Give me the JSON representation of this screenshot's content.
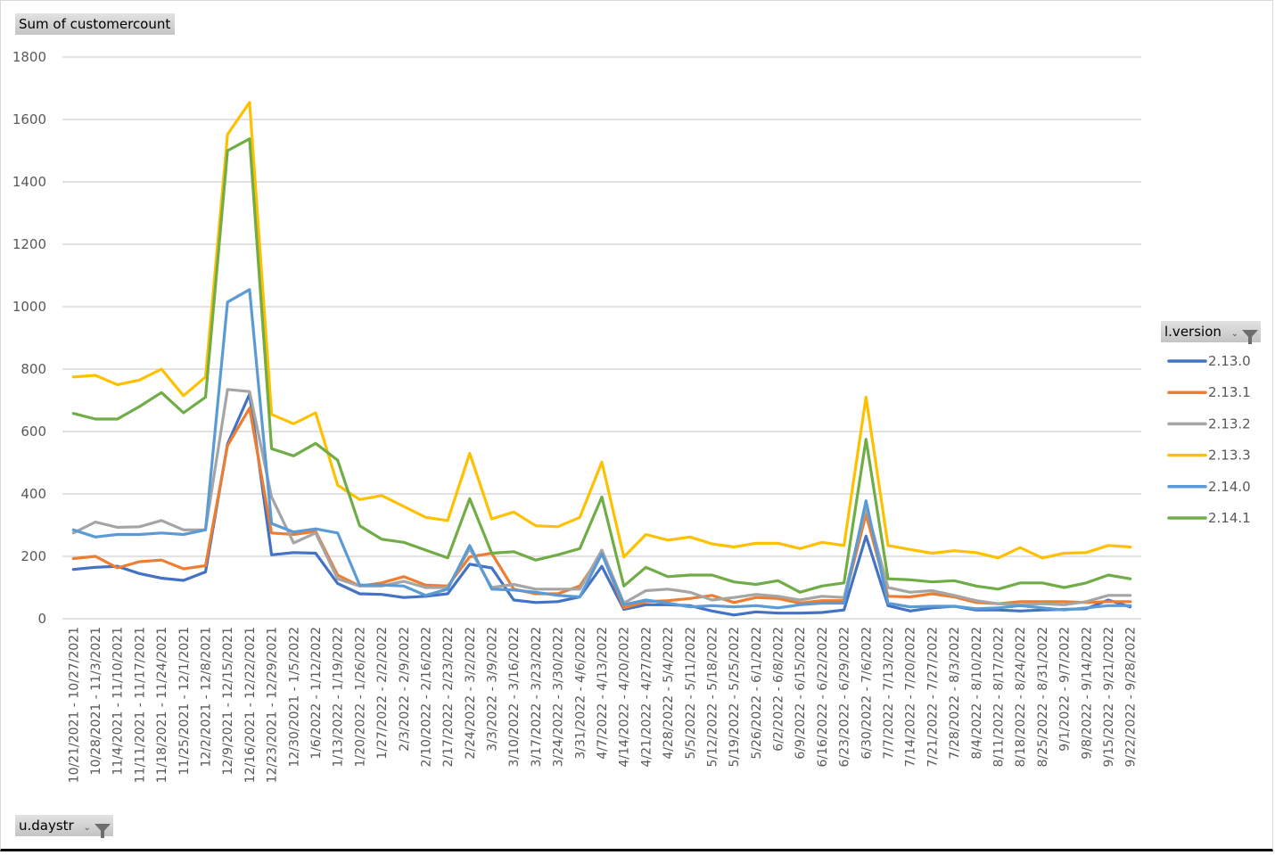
{
  "chart_data": {
    "type": "line",
    "title": "",
    "ylabel": "Sum of customercount",
    "xlabel": "u.daystr",
    "ylim": [
      0,
      1800
    ],
    "yticks": [
      0,
      200,
      400,
      600,
      800,
      1000,
      1200,
      1400,
      1600,
      1800
    ],
    "grid": true,
    "legend_position": "right",
    "legend_title": "l.version",
    "categories": [
      "10/21/2021 - 10/27/2021",
      "10/28/2021 - 11/3/2021",
      "11/4/2021 - 11/10/2021",
      "11/11/2021 - 11/17/2021",
      "11/18/2021 - 11/24/2021",
      "11/25/2021 - 12/1/2021",
      "12/2/2021 - 12/8/2021",
      "12/9/2021 - 12/15/2021",
      "12/16/2021 - 12/22/2021",
      "12/23/2021 - 12/29/2021",
      "12/30/2021 - 1/5/2022",
      "1/6/2022 - 1/12/2022",
      "1/13/2022 - 1/19/2022",
      "1/20/2022 - 1/26/2022",
      "1/27/2022 - 2/2/2022",
      "2/3/2022 - 2/9/2022",
      "2/10/2022 - 2/16/2022",
      "2/17/2022 - 2/23/2022",
      "2/24/2022 - 3/2/2022",
      "3/3/2022 - 3/9/2022",
      "3/10/2022 - 3/16/2022",
      "3/17/2022 - 3/23/2022",
      "3/24/2022 - 3/30/2022",
      "3/31/2022 - 4/6/2022",
      "4/7/2022 - 4/13/2022",
      "4/14/2022 - 4/20/2022",
      "4/21/2022 - 4/27/2022",
      "4/28/2022 - 5/4/2022",
      "5/5/2022 - 5/11/2022",
      "5/12/2022 - 5/18/2022",
      "5/19/2022 - 5/25/2022",
      "5/26/2022 - 6/1/2022",
      "6/2/2022 - 6/8/2022",
      "6/9/2022 - 6/15/2022",
      "6/16/2022 - 6/22/2022",
      "6/23/2022 - 6/29/2022",
      "6/30/2022 - 7/6/2022",
      "7/7/2022 - 7/13/2022",
      "7/14/2022 - 7/20/2022",
      "7/21/2022 - 7/27/2022",
      "7/28/2022 - 8/3/2022",
      "8/4/2022 - 8/10/2022",
      "8/11/2022 - 8/17/2022",
      "8/18/2022 - 8/24/2022",
      "8/25/2022 - 8/31/2022",
      "9/1/2022 - 9/7/2022",
      "9/8/2022 - 9/14/2022",
      "9/15/2022 - 9/21/2022",
      "9/22/2022 - 9/28/2022"
    ],
    "series": [
      {
        "name": "2.13.0",
        "color": "#4472c4",
        "values": [
          158,
          165,
          168,
          145,
          130,
          123,
          150,
          560,
          720,
          205,
          212,
          210,
          113,
          80,
          78,
          68,
          72,
          80,
          175,
          163,
          60,
          52,
          55,
          70,
          168,
          30,
          45,
          45,
          42,
          25,
          12,
          22,
          18,
          18,
          20,
          28,
          265,
          42,
          25,
          35,
          40,
          28,
          28,
          25,
          28,
          30,
          32,
          60,
          38
        ]
      },
      {
        "name": "2.13.1",
        "color": "#ed7d31",
        "values": [
          193,
          200,
          163,
          183,
          188,
          160,
          170,
          555,
          675,
          275,
          270,
          280,
          140,
          105,
          115,
          135,
          108,
          105,
          198,
          210,
          95,
          80,
          80,
          105,
          210,
          35,
          55,
          58,
          65,
          75,
          52,
          68,
          65,
          50,
          58,
          58,
          335,
          72,
          70,
          80,
          70,
          52,
          48,
          55,
          55,
          55,
          52,
          55,
          55
        ]
      },
      {
        "name": "2.13.2",
        "color": "#a5a5a5",
        "values": [
          275,
          310,
          293,
          295,
          315,
          285,
          285,
          735,
          728,
          390,
          243,
          275,
          128,
          105,
          105,
          120,
          100,
          100,
          225,
          100,
          110,
          95,
          95,
          95,
          220,
          50,
          90,
          95,
          85,
          60,
          68,
          78,
          72,
          60,
          72,
          68,
          360,
          100,
          85,
          90,
          75,
          58,
          48,
          45,
          48,
          45,
          55,
          75,
          75
        ]
      },
      {
        "name": "2.13.3",
        "color": "#ffc000",
        "values": [
          775,
          780,
          750,
          765,
          800,
          715,
          775,
          1552,
          1655,
          655,
          625,
          660,
          428,
          382,
          395,
          360,
          325,
          315,
          530,
          320,
          342,
          298,
          295,
          325,
          502,
          198,
          270,
          252,
          262,
          240,
          230,
          242,
          242,
          225,
          245,
          235,
          710,
          235,
          222,
          210,
          218,
          212,
          195,
          228,
          195,
          210,
          212,
          235,
          230
        ]
      },
      {
        "name": "2.14.0",
        "color": "#5b9bd5",
        "values": [
          285,
          262,
          270,
          270,
          275,
          270,
          285,
          1015,
          1055,
          305,
          278,
          288,
          275,
          108,
          108,
          105,
          75,
          95,
          235,
          95,
          92,
          85,
          75,
          70,
          208,
          45,
          60,
          50,
          38,
          42,
          38,
          42,
          35,
          45,
          50,
          50,
          378,
          50,
          38,
          40,
          40,
          32,
          35,
          42,
          35,
          28,
          35,
          42,
          42
        ]
      },
      {
        "name": "2.14.1",
        "color": "#70ad47",
        "values": [
          658,
          640,
          640,
          680,
          725,
          660,
          710,
          1500,
          1538,
          545,
          522,
          562,
          508,
          298,
          255,
          245,
          220,
          195,
          385,
          210,
          215,
          188,
          205,
          225,
          390,
          105,
          165,
          135,
          140,
          140,
          118,
          110,
          122,
          85,
          105,
          115,
          575,
          128,
          125,
          118,
          122,
          105,
          95,
          115,
          115,
          100,
          115,
          140,
          128
        ]
      }
    ]
  },
  "field_buttons": {
    "values_field": "Sum of customercount",
    "axis_field": "u.daystr",
    "legend_field": "l.version"
  },
  "icons": {
    "filter": "funnel-icon",
    "dropdown": "dropdown-arrow-icon"
  }
}
